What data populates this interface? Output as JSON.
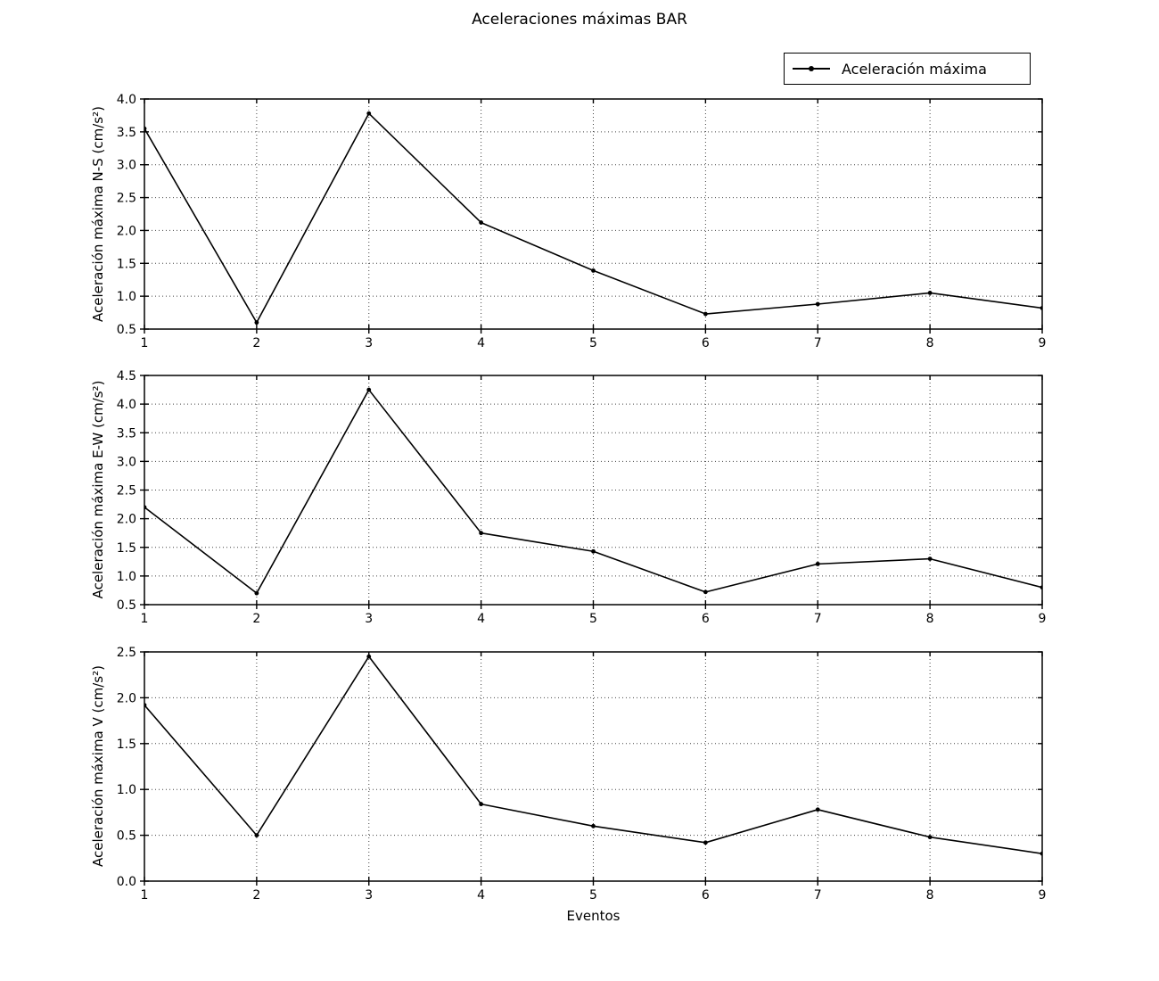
{
  "title": "Aceleraciones máximas BAR",
  "xlabel": "Eventos",
  "legend": {
    "label": "Aceleración máxima",
    "position": "upper right, above first subplot"
  },
  "colors": {
    "line": "#000000",
    "marker": "#000000",
    "grid": "#444444",
    "axis": "#000000",
    "background": "#ffffff"
  },
  "chart_data": [
    {
      "type": "line",
      "id": "ns",
      "ylabel": "Aceleración máxima N-S (cm/s²)",
      "series_name": "Aceleración máxima",
      "x": [
        1,
        2,
        3,
        4,
        5,
        6,
        7,
        8,
        9
      ],
      "values": [
        3.55,
        0.6,
        3.78,
        2.12,
        1.39,
        0.73,
        0.88,
        1.05,
        0.82
      ],
      "xlim": [
        1,
        9
      ],
      "ylim": [
        0.5,
        4.0
      ],
      "xticks": [
        1,
        2,
        3,
        4,
        5,
        6,
        7,
        8,
        9
      ],
      "xticklabels": [
        "1",
        "2",
        "3",
        "4",
        "5",
        "6",
        "7",
        "8",
        "9"
      ],
      "yticks": [
        0.5,
        1.0,
        1.5,
        2.0,
        2.5,
        3.0,
        3.5,
        4.0
      ],
      "yticklabels": [
        "0.5",
        "1.0",
        "1.5",
        "2.0",
        "2.5",
        "3.0",
        "3.5",
        "4.0"
      ],
      "grid": true,
      "marker": "dot"
    },
    {
      "type": "line",
      "id": "ew",
      "ylabel": "Aceleración máxima E-W (cm/s²)",
      "series_name": "Aceleración máxima",
      "x": [
        1,
        2,
        3,
        4,
        5,
        6,
        7,
        8,
        9
      ],
      "values": [
        2.2,
        0.7,
        4.25,
        1.75,
        1.43,
        0.72,
        1.21,
        1.3,
        0.8
      ],
      "xlim": [
        1,
        9
      ],
      "ylim": [
        0.5,
        4.5
      ],
      "xticks": [
        1,
        2,
        3,
        4,
        5,
        6,
        7,
        8,
        9
      ],
      "xticklabels": [
        "1",
        "2",
        "3",
        "4",
        "5",
        "6",
        "7",
        "8",
        "9"
      ],
      "yticks": [
        0.5,
        1.0,
        1.5,
        2.0,
        2.5,
        3.0,
        3.5,
        4.0,
        4.5
      ],
      "yticklabels": [
        "0.5",
        "1.0",
        "1.5",
        "2.0",
        "2.5",
        "3.0",
        "3.5",
        "4.0",
        "4.5"
      ],
      "grid": true,
      "marker": "dot"
    },
    {
      "type": "line",
      "id": "v",
      "ylabel": "Aceleración máxima V (cm/s²)",
      "series_name": "Aceleración máxima",
      "x": [
        1,
        2,
        3,
        4,
        5,
        6,
        7,
        8,
        9
      ],
      "values": [
        1.92,
        0.5,
        2.45,
        0.84,
        0.6,
        0.42,
        0.78,
        0.48,
        0.3
      ],
      "xlim": [
        1,
        9
      ],
      "ylim": [
        0.0,
        2.5
      ],
      "xticks": [
        1,
        2,
        3,
        4,
        5,
        6,
        7,
        8,
        9
      ],
      "xticklabels": [
        "1",
        "2",
        "3",
        "4",
        "5",
        "6",
        "7",
        "8",
        "9"
      ],
      "yticks": [
        0.0,
        0.5,
        1.0,
        1.5,
        2.0,
        2.5
      ],
      "yticklabels": [
        "0.0",
        "0.5",
        "1.0",
        "1.5",
        "2.0",
        "2.5"
      ],
      "grid": true,
      "marker": "dot"
    }
  ]
}
